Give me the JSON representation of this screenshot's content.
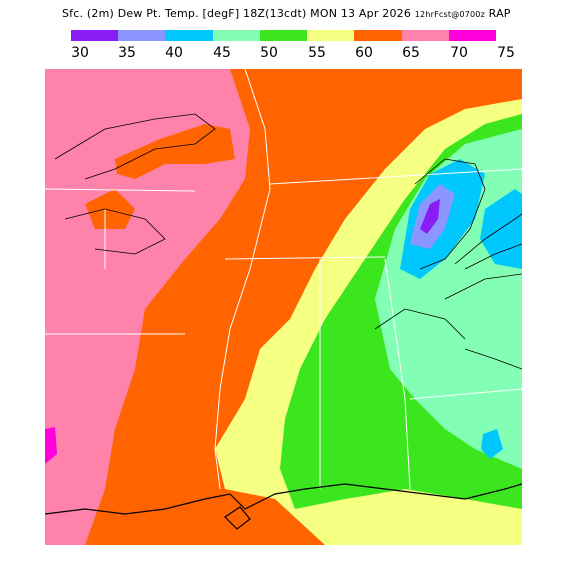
{
  "header": {
    "title_main": "Sfc. (2m) Dew Pt. Temp. [degF] 18Z(13cdt) MON 13 Apr 2026",
    "title_small": "12hrFcst@0700z",
    "model": "RAP"
  },
  "legend": {
    "labels": [
      "30",
      "35",
      "40",
      "45",
      "50",
      "55",
      "60",
      "65",
      "70",
      "75"
    ],
    "colors": [
      "#8a1cf5",
      "#8c96ff",
      "#00c8ff",
      "#82ffb4",
      "#3ce61e",
      "#f5ff82",
      "#ff6400",
      "#ff82aa",
      "#ff00dc"
    ]
  },
  "map": {
    "variable": "surface dew point temperature",
    "units": "degF",
    "field_colors": {
      "pink_65_70": "#ff82aa",
      "orange_60_65": "#ff6400",
      "yellow_55_60": "#f5ff82",
      "green_50_55": "#3ce61e",
      "mint_45_50": "#82ffb4",
      "cyan_40_45": "#00c8ff",
      "blue_35_40": "#8c96ff",
      "purple_30_35": "#8a1cf5",
      "magenta_70_75": "#ff00dc"
    }
  }
}
